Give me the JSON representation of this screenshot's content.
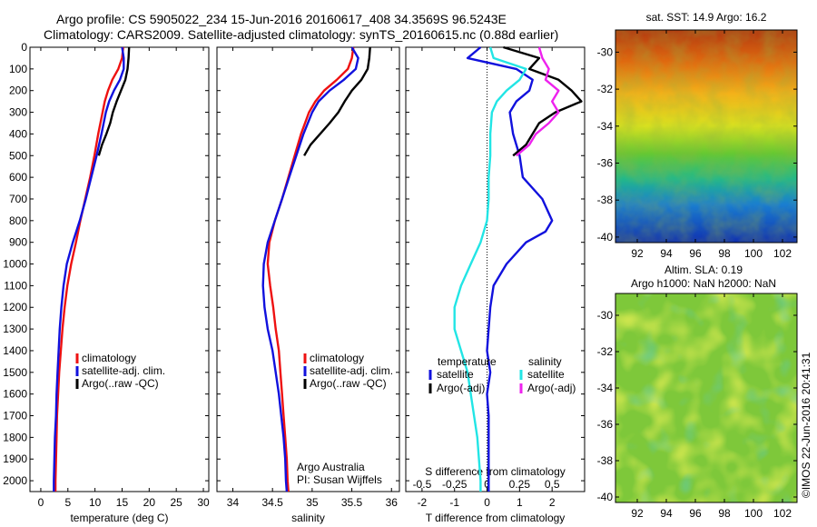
{
  "header": {
    "line1": "Argo profile: CS 5905022_234 15-Jun-2016 20160617_408 34.3569S 96.5243E",
    "line2": "Climatology: CARS2009. Satellite-adjusted climatology: synTS_20160615.nc (0.88d earlier)"
  },
  "watermark": "©IMOS 22-Jun-2016 20:41:31",
  "colors": {
    "climatology": "#ee1111",
    "satellite": "#1111dd",
    "argo": "#000000",
    "cyan": "#22e5e5",
    "magenta": "#ee22ee"
  },
  "chart_data": [
    {
      "type": "line",
      "xlabel": "temperature (deg C)",
      "ylim": [
        0,
        2050
      ],
      "xlim": [
        -2,
        31
      ],
      "xticks": [
        0,
        5,
        10,
        15,
        20,
        25,
        30
      ],
      "yticks": [
        0,
        100,
        200,
        300,
        400,
        500,
        600,
        700,
        800,
        900,
        1000,
        1100,
        1200,
        1300,
        1400,
        1500,
        1600,
        1700,
        1800,
        1900,
        2000
      ],
      "legend": [
        "climatology",
        "satellite-adj. clim.",
        "Argo(..raw -QC)"
      ],
      "legend_position": "lower-right",
      "series": [
        {
          "name": "climatology",
          "color": "#ee1111",
          "y": [
            0,
            50,
            100,
            150,
            200,
            250,
            300,
            400,
            500,
            600,
            700,
            800,
            900,
            1000,
            1100,
            1200,
            1300,
            1400,
            1500,
            1600,
            1700,
            1800,
            1900,
            2000,
            2050
          ],
          "x": [
            15.2,
            15.0,
            14.3,
            13.2,
            12.4,
            11.8,
            11.4,
            10.6,
            9.9,
            9.1,
            8.2,
            7.3,
            6.5,
            5.6,
            4.9,
            4.4,
            4.0,
            3.7,
            3.4,
            3.2,
            3.0,
            2.9,
            2.8,
            2.7,
            2.7
          ]
        },
        {
          "name": "satellite-adj. clim.",
          "color": "#1111dd",
          "y": [
            0,
            50,
            100,
            150,
            200,
            250,
            300,
            400,
            500,
            600,
            700,
            800,
            900,
            1000,
            1100,
            1200,
            1300,
            1400,
            1500,
            1600,
            1700,
            1800,
            1900,
            2000,
            2050
          ],
          "x": [
            15.0,
            15.3,
            15.3,
            14.6,
            13.5,
            12.6,
            12.0,
            11.2,
            10.3,
            9.3,
            8.3,
            7.2,
            5.9,
            4.8,
            4.2,
            3.8,
            3.5,
            3.3,
            3.1,
            2.9,
            2.8,
            2.6,
            2.5,
            2.4,
            2.4
          ]
        },
        {
          "name": "Argo(..raw -QC)",
          "color": "#000000",
          "y": [
            0,
            50,
            100,
            150,
            200,
            250,
            300,
            350,
            400,
            450,
            500
          ],
          "x": [
            16.3,
            16.2,
            16.0,
            15.6,
            14.8,
            14.0,
            13.3,
            12.8,
            12.1,
            11.3,
            10.7
          ]
        }
      ]
    },
    {
      "type": "line",
      "xlabel": "salinity",
      "ylim": [
        0,
        2050
      ],
      "xlim": [
        33.8,
        36.1
      ],
      "xticks": [
        34,
        34.5,
        35,
        35.5,
        36
      ],
      "legend": [
        "climatology",
        "satellite-adj. clim.",
        "Argo(..raw -QC)"
      ],
      "legend_position": "lower-right",
      "annotation": [
        "Argo Australia",
        "PI: Susan Wijffels"
      ],
      "series": [
        {
          "name": "climatology",
          "color": "#ee1111",
          "y": [
            0,
            50,
            100,
            150,
            200,
            250,
            300,
            400,
            500,
            600,
            700,
            800,
            900,
            1000,
            1100,
            1200,
            1300,
            1400,
            1500,
            1600,
            1700,
            1800,
            1900,
            2000,
            2050
          ],
          "x": [
            35.52,
            35.5,
            35.45,
            35.31,
            35.15,
            35.04,
            34.96,
            34.86,
            34.78,
            34.7,
            34.62,
            34.53,
            34.46,
            34.44,
            34.47,
            34.51,
            34.54,
            34.58,
            34.6,
            34.62,
            34.64,
            34.66,
            34.68,
            34.69,
            34.7
          ]
        },
        {
          "name": "satellite-adj. clim.",
          "color": "#1111dd",
          "y": [
            0,
            50,
            100,
            150,
            200,
            250,
            300,
            400,
            500,
            600,
            700,
            800,
            900,
            1000,
            1100,
            1200,
            1300,
            1400,
            1500,
            1600,
            1700,
            1800,
            1900,
            2000,
            2050
          ],
          "x": [
            35.5,
            35.58,
            35.55,
            35.4,
            35.22,
            35.08,
            35.0,
            34.89,
            34.8,
            34.71,
            34.62,
            34.53,
            34.44,
            34.39,
            34.38,
            34.4,
            34.44,
            34.5,
            34.54,
            34.58,
            34.61,
            34.64,
            34.66,
            34.67,
            34.68
          ]
        },
        {
          "name": "Argo(..raw -QC)",
          "color": "#000000",
          "y": [
            0,
            50,
            100,
            150,
            200,
            250,
            300,
            350,
            400,
            450,
            500
          ],
          "x": [
            35.73,
            35.72,
            35.7,
            35.62,
            35.5,
            35.41,
            35.33,
            35.22,
            35.1,
            34.98,
            34.9
          ]
        }
      ]
    },
    {
      "type": "line",
      "xlabel": "T difference from climatology",
      "xlabel2": "S difference from climatology",
      "ylim": [
        0,
        2050
      ],
      "xlim": [
        -2.5,
        3.0
      ],
      "xticks": [
        -2,
        -1,
        0,
        1,
        2
      ],
      "xticks_top": [
        "-0.5",
        "-0.25",
        "0",
        "0.25",
        "0.5"
      ],
      "legend_groups": [
        {
          "title": "temperature",
          "items": [
            "satellite",
            "Argo(-adj)"
          ]
        },
        {
          "title": "salinity",
          "items": [
            "satellite",
            "Argo(-adj)"
          ]
        }
      ],
      "series": [
        {
          "name": "temperature satellite",
          "color": "#1111dd",
          "y": [
            0,
            50,
            100,
            150,
            200,
            250,
            300,
            400,
            500,
            600,
            700,
            800,
            850,
            900,
            1000,
            1100,
            1200,
            1300,
            1400,
            1500,
            1600,
            1700,
            1800,
            1900,
            2000,
            2050
          ],
          "x": [
            -0.2,
            -0.6,
            0.9,
            1.4,
            1.3,
            0.9,
            0.7,
            0.8,
            1.0,
            1.1,
            1.7,
            2.0,
            1.8,
            1.2,
            0.6,
            0.2,
            0.1,
            0.05,
            0.0,
            0.1,
            0.0,
            0.05,
            0.05,
            0.05,
            0.05,
            0.05
          ]
        },
        {
          "name": "temperature Argo(-adj)",
          "color": "#000000",
          "y": [
            0,
            50,
            100,
            150,
            200,
            250,
            300,
            350,
            400,
            450,
            500
          ],
          "x": [
            0.5,
            1.6,
            1.3,
            2.2,
            2.6,
            2.9,
            2.1,
            1.6,
            1.4,
            1.2,
            0.8
          ]
        },
        {
          "name": "salinity satellite",
          "color": "#22e5e5",
          "y": [
            0,
            50,
            100,
            150,
            200,
            250,
            300,
            400,
            500,
            600,
            700,
            800,
            900,
            1000,
            1100,
            1200,
            1300,
            1400,
            1500,
            1600,
            1700,
            1800,
            1900,
            2000,
            2050
          ],
          "x": [
            0.1,
            0.2,
            1.2,
            1.0,
            0.6,
            0.3,
            0.15,
            0.1,
            0.1,
            0.05,
            0.05,
            0.0,
            -0.2,
            -0.5,
            -0.8,
            -1.0,
            -1.0,
            -0.8,
            -0.6,
            -0.5,
            -0.4,
            -0.3,
            -0.25,
            -0.2,
            -0.2
          ]
        },
        {
          "name": "salinity Argo(-adj)",
          "color": "#ee22ee",
          "y": [
            0,
            50,
            100,
            150,
            200,
            250,
            300,
            350,
            400,
            450,
            500
          ],
          "x": [
            1.6,
            1.7,
            1.9,
            1.8,
            2.2,
            2.0,
            2.2,
            1.9,
            1.5,
            1.3,
            0.9
          ]
        }
      ]
    },
    {
      "type": "heatmap",
      "title": "sat. SST: 14.9 Argo: 16.2",
      "xticks": [
        92,
        94,
        96,
        98,
        100,
        102
      ],
      "yticks": [
        -30,
        -32,
        -34,
        -36,
        -38,
        -40
      ],
      "xlim": [
        90.5,
        103
      ],
      "ylim": [
        -40.3,
        -28.8
      ],
      "gradient": "warm (north) to cold (south)"
    },
    {
      "type": "heatmap",
      "title": "Altim. SLA: 0.19",
      "subtitle": "Argo h1000: NaN h2000: NaN",
      "xticks": [
        92,
        94,
        96,
        98,
        100,
        102
      ],
      "yticks": [
        -30,
        -32,
        -34,
        -36,
        -38,
        -40
      ],
      "xlim": [
        90.5,
        103
      ],
      "ylim": [
        -40.3,
        -28.8
      ],
      "gradient": "patchy green-yellow"
    }
  ]
}
